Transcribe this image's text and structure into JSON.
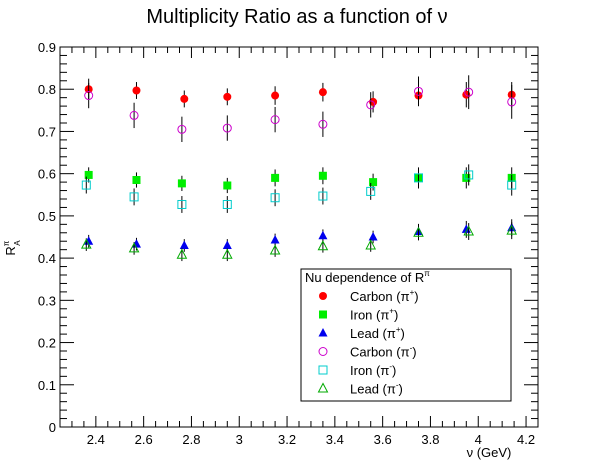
{
  "chart_data": {
    "type": "scatter",
    "title": "Multiplicity Ratio as a function of ν",
    "xlabel": "ν (GeV)",
    "ylabel_main": "R",
    "ylabel_sup": "π",
    "ylabel_sub": "A",
    "xlim": [
      2.25,
      4.25
    ],
    "ylim": [
      0,
      0.9
    ],
    "x_ticks": [
      "2.4",
      "2.6",
      "2.8",
      "3",
      "3.2",
      "3.4",
      "3.6",
      "3.8",
      "4",
      "4.2"
    ],
    "y_ticks": [
      "0",
      "0.1",
      "0.2",
      "0.3",
      "0.4",
      "0.5",
      "0.6",
      "0.7",
      "0.8",
      "0.9"
    ],
    "grid": false,
    "legend_title_main": "Nu dependence of R",
    "legend_title_sup": "π",
    "legend_placement": "bottom-right",
    "series": [
      {
        "name": "Carbon (π⁺)",
        "base": "Carbon (π",
        "sign": "+",
        "marker": "circle-filled",
        "color": "#ff0000",
        "x": [
          2.37,
          2.57,
          2.77,
          2.95,
          3.15,
          3.35,
          3.56,
          3.75,
          3.95,
          4.14
        ],
        "y": [
          0.8,
          0.797,
          0.777,
          0.782,
          0.785,
          0.793,
          0.77,
          0.785,
          0.787,
          0.787
        ],
        "err": [
          0.025,
          0.02,
          0.02,
          0.02,
          0.022,
          0.022,
          0.025,
          0.025,
          0.03,
          0.03
        ]
      },
      {
        "name": "Iron (π⁺)",
        "base": "Iron (π",
        "sign": "+",
        "marker": "square-filled",
        "color": "#00ee00",
        "x": [
          2.37,
          2.57,
          2.76,
          2.95,
          3.15,
          3.35,
          3.56,
          3.75,
          3.95,
          4.14
        ],
        "y": [
          0.597,
          0.585,
          0.577,
          0.572,
          0.59,
          0.595,
          0.58,
          0.59,
          0.59,
          0.59
        ],
        "err": [
          0.018,
          0.018,
          0.018,
          0.018,
          0.02,
          0.02,
          0.02,
          0.022,
          0.025,
          0.025
        ]
      },
      {
        "name": "Lead (π⁺)",
        "base": "Lead (π",
        "sign": "+",
        "marker": "triangle-filled",
        "color": "#0000ee",
        "x": [
          2.37,
          2.57,
          2.77,
          2.95,
          3.15,
          3.35,
          3.56,
          3.75,
          3.95,
          4.14
        ],
        "y": [
          0.44,
          0.433,
          0.43,
          0.43,
          0.443,
          0.453,
          0.45,
          0.463,
          0.468,
          0.472
        ],
        "err": [
          0.015,
          0.015,
          0.015,
          0.015,
          0.015,
          0.015,
          0.015,
          0.018,
          0.02,
          0.02
        ]
      },
      {
        "name": "Carbon (π⁻)",
        "base": "Carbon (π",
        "sign": "-",
        "marker": "circle-open",
        "color": "#cc00cc",
        "x": [
          2.37,
          2.56,
          2.76,
          2.95,
          3.15,
          3.35,
          3.55,
          3.75,
          3.96,
          4.14
        ],
        "y": [
          0.785,
          0.738,
          0.705,
          0.708,
          0.728,
          0.717,
          0.763,
          0.795,
          0.793,
          0.77
        ],
        "err": [
          0.03,
          0.03,
          0.03,
          0.03,
          0.03,
          0.03,
          0.03,
          0.035,
          0.04,
          0.04
        ]
      },
      {
        "name": "Iron (π⁻)",
        "base": "Iron (π",
        "sign": "-",
        "marker": "square-open",
        "color": "#00cccc",
        "x": [
          2.36,
          2.56,
          2.76,
          2.95,
          3.15,
          3.35,
          3.55,
          3.75,
          3.96,
          4.14
        ],
        "y": [
          0.573,
          0.545,
          0.527,
          0.527,
          0.543,
          0.547,
          0.558,
          0.59,
          0.597,
          0.573
        ],
        "err": [
          0.02,
          0.02,
          0.02,
          0.02,
          0.02,
          0.02,
          0.02,
          0.025,
          0.025,
          0.025
        ]
      },
      {
        "name": "Lead (π⁻)",
        "base": "Lead (π",
        "sign": "-",
        "marker": "triangle-open",
        "color": "#00aa00",
        "x": [
          2.36,
          2.56,
          2.76,
          2.95,
          3.15,
          3.35,
          3.55,
          3.75,
          3.96,
          4.14
        ],
        "y": [
          0.432,
          0.423,
          0.408,
          0.408,
          0.418,
          0.428,
          0.43,
          0.46,
          0.463,
          0.465
        ],
        "err": [
          0.015,
          0.015,
          0.015,
          0.015,
          0.015,
          0.015,
          0.015,
          0.018,
          0.02,
          0.02
        ]
      }
    ]
  }
}
